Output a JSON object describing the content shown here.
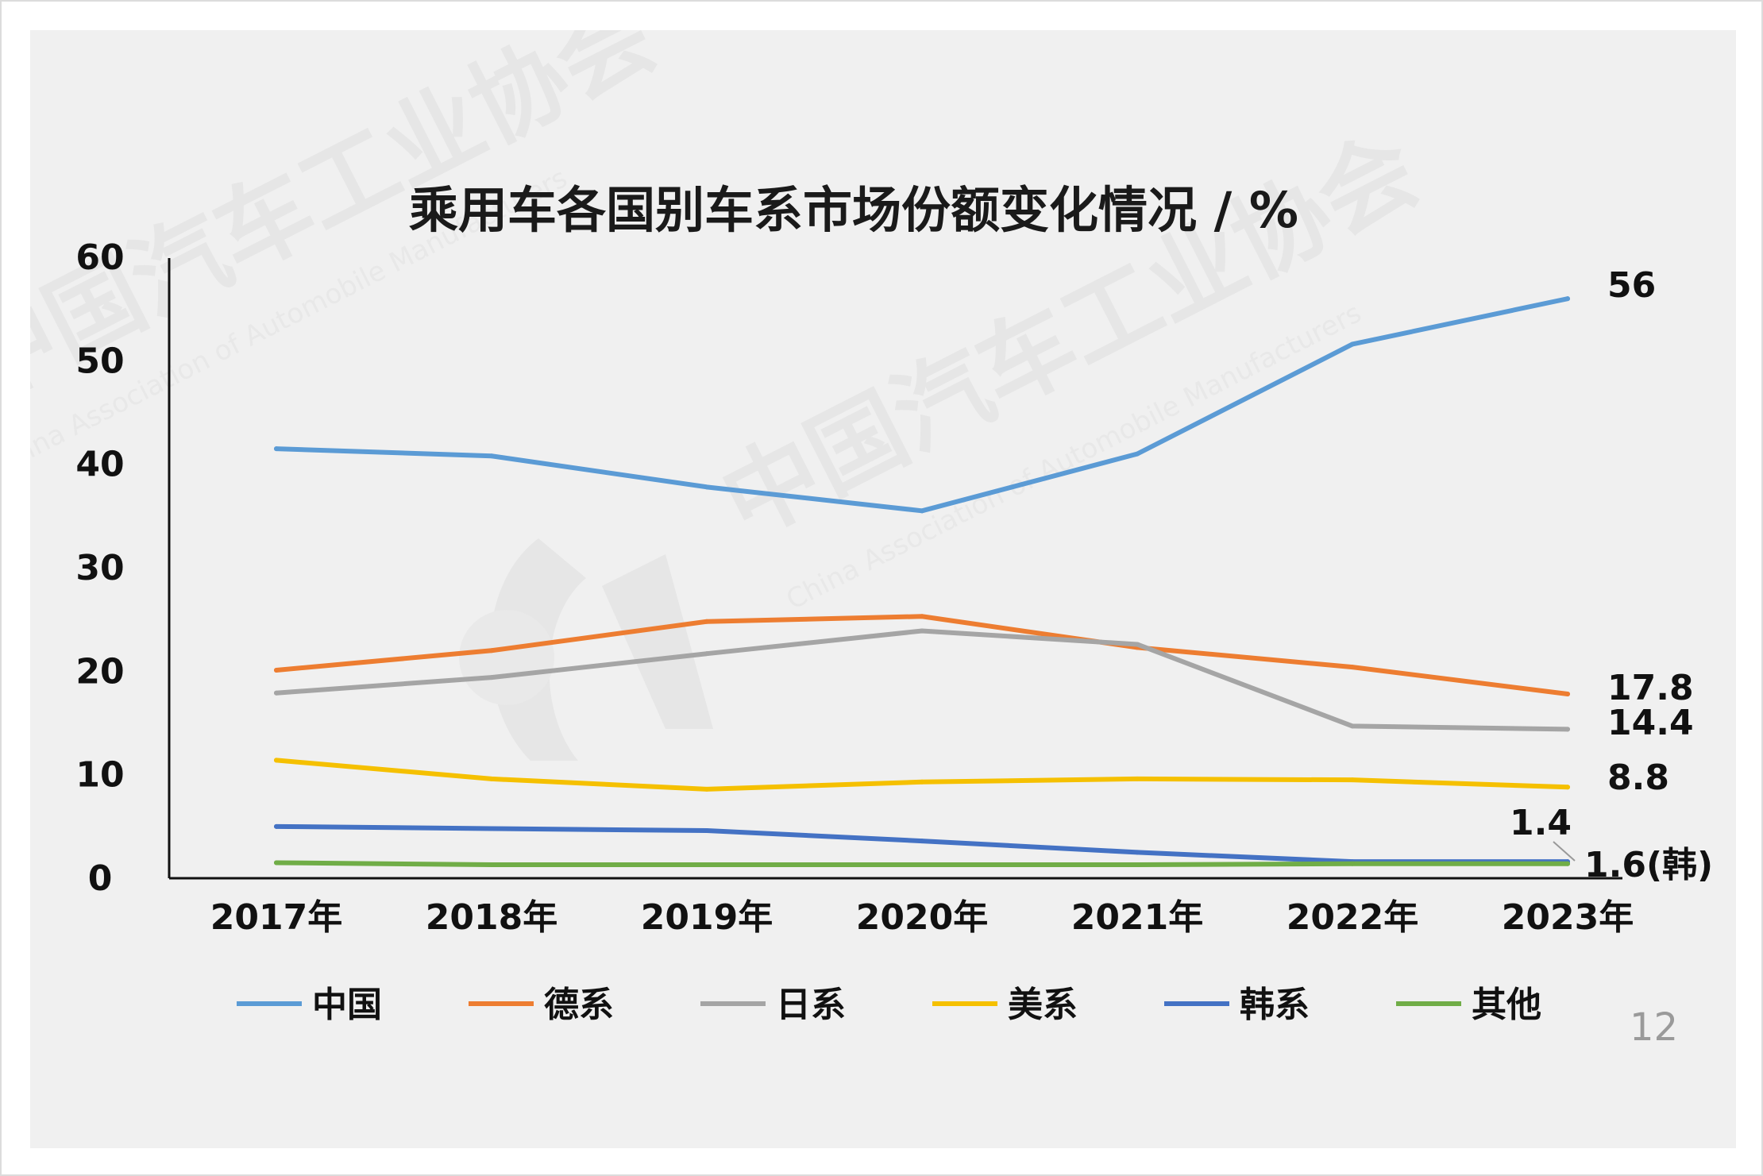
{
  "chart_data": {
    "type": "line",
    "title": "乘用车各国别车系市场份额变化情况 / %",
    "categories": [
      "2017年",
      "2018年",
      "2019年",
      "2020年",
      "2021年",
      "2022年",
      "2023年"
    ],
    "ylim": [
      0,
      60
    ],
    "yticks": [
      0,
      10,
      20,
      30,
      40,
      50,
      60
    ],
    "grid": false,
    "legend_position": "bottom",
    "series": [
      {
        "name": "中国",
        "color": "#5b9bd5",
        "values": [
          41.5,
          40.8,
          37.8,
          35.5,
          41.0,
          51.6,
          56.0
        ]
      },
      {
        "name": "德系",
        "color": "#ed7d31",
        "values": [
          20.1,
          22.0,
          24.8,
          25.3,
          22.3,
          20.4,
          17.8
        ]
      },
      {
        "name": "日系",
        "color": "#a5a5a5",
        "values": [
          17.9,
          19.4,
          21.7,
          23.9,
          22.6,
          14.7,
          14.4
        ]
      },
      {
        "name": "美系",
        "color": "#f5c000",
        "values": [
          11.4,
          9.6,
          8.6,
          9.3,
          9.6,
          9.5,
          8.8
        ]
      },
      {
        "name": "韩系",
        "color": "#4472c4",
        "values": [
          5.0,
          4.8,
          4.6,
          3.6,
          2.5,
          1.6,
          1.6
        ]
      },
      {
        "name": "其他",
        "color": "#70ad47",
        "values": [
          1.5,
          1.3,
          1.3,
          1.3,
          1.3,
          1.4,
          1.4
        ]
      }
    ],
    "end_labels": [
      {
        "series": "中国",
        "text": "56"
      },
      {
        "series": "德系",
        "text": "17.8"
      },
      {
        "series": "日系",
        "text": "14.4"
      },
      {
        "series": "美系",
        "text": "8.8"
      },
      {
        "series": "其他",
        "text": "1.4"
      },
      {
        "series": "韩系",
        "text": "1.6(韩)"
      }
    ]
  },
  "page_number": "12",
  "watermark": {
    "lines": [
      "中国汽车工业协会",
      "China Association of Automobile Manufacturers"
    ]
  }
}
